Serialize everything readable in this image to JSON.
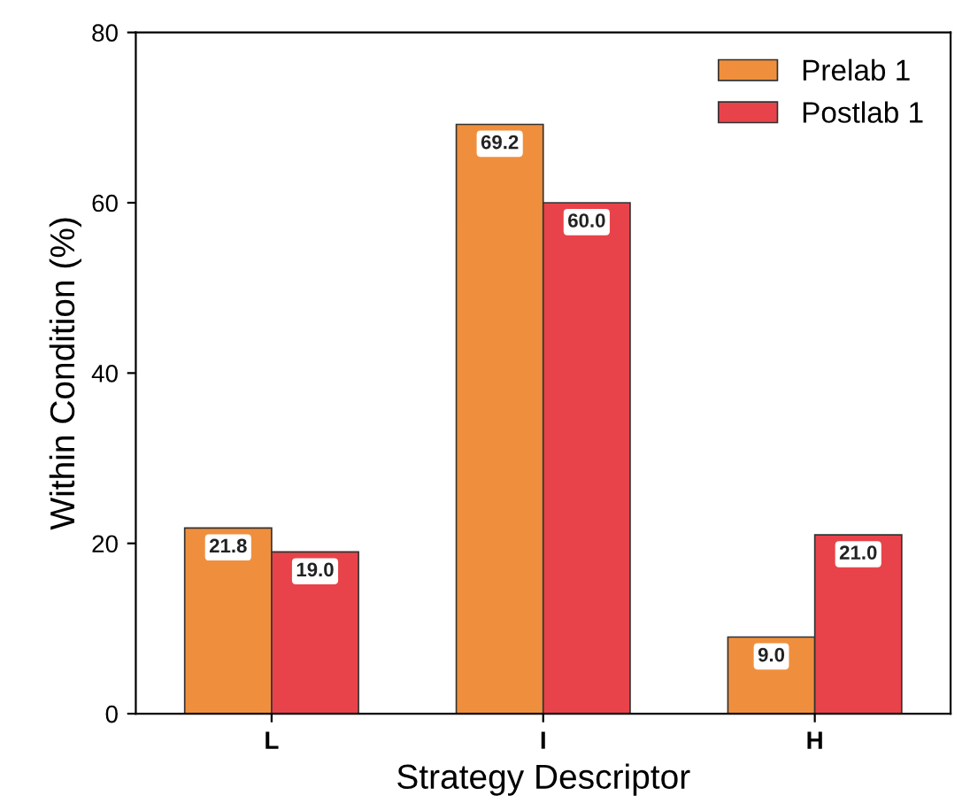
{
  "chart_data": {
    "type": "bar",
    "xlabel": "Strategy Descriptor",
    "ylabel": "Within Condition (%)",
    "categories": [
      "L",
      "I",
      "H"
    ],
    "series": [
      {
        "name": "Prelab 1",
        "color": "#ef8f3e",
        "values": [
          21.8,
          69.2,
          9.0
        ],
        "value_labels": [
          "21.8",
          "69.2",
          "9.0"
        ]
      },
      {
        "name": "Postlab 1",
        "color": "#e8434a",
        "values": [
          19.0,
          60.0,
          21.0
        ],
        "value_labels": [
          "19.0",
          "60.0",
          "21.0"
        ]
      }
    ],
    "ylim": [
      0,
      80
    ],
    "yticks": [
      0,
      20,
      40,
      60,
      80
    ],
    "grid": false,
    "legend": "top right"
  }
}
